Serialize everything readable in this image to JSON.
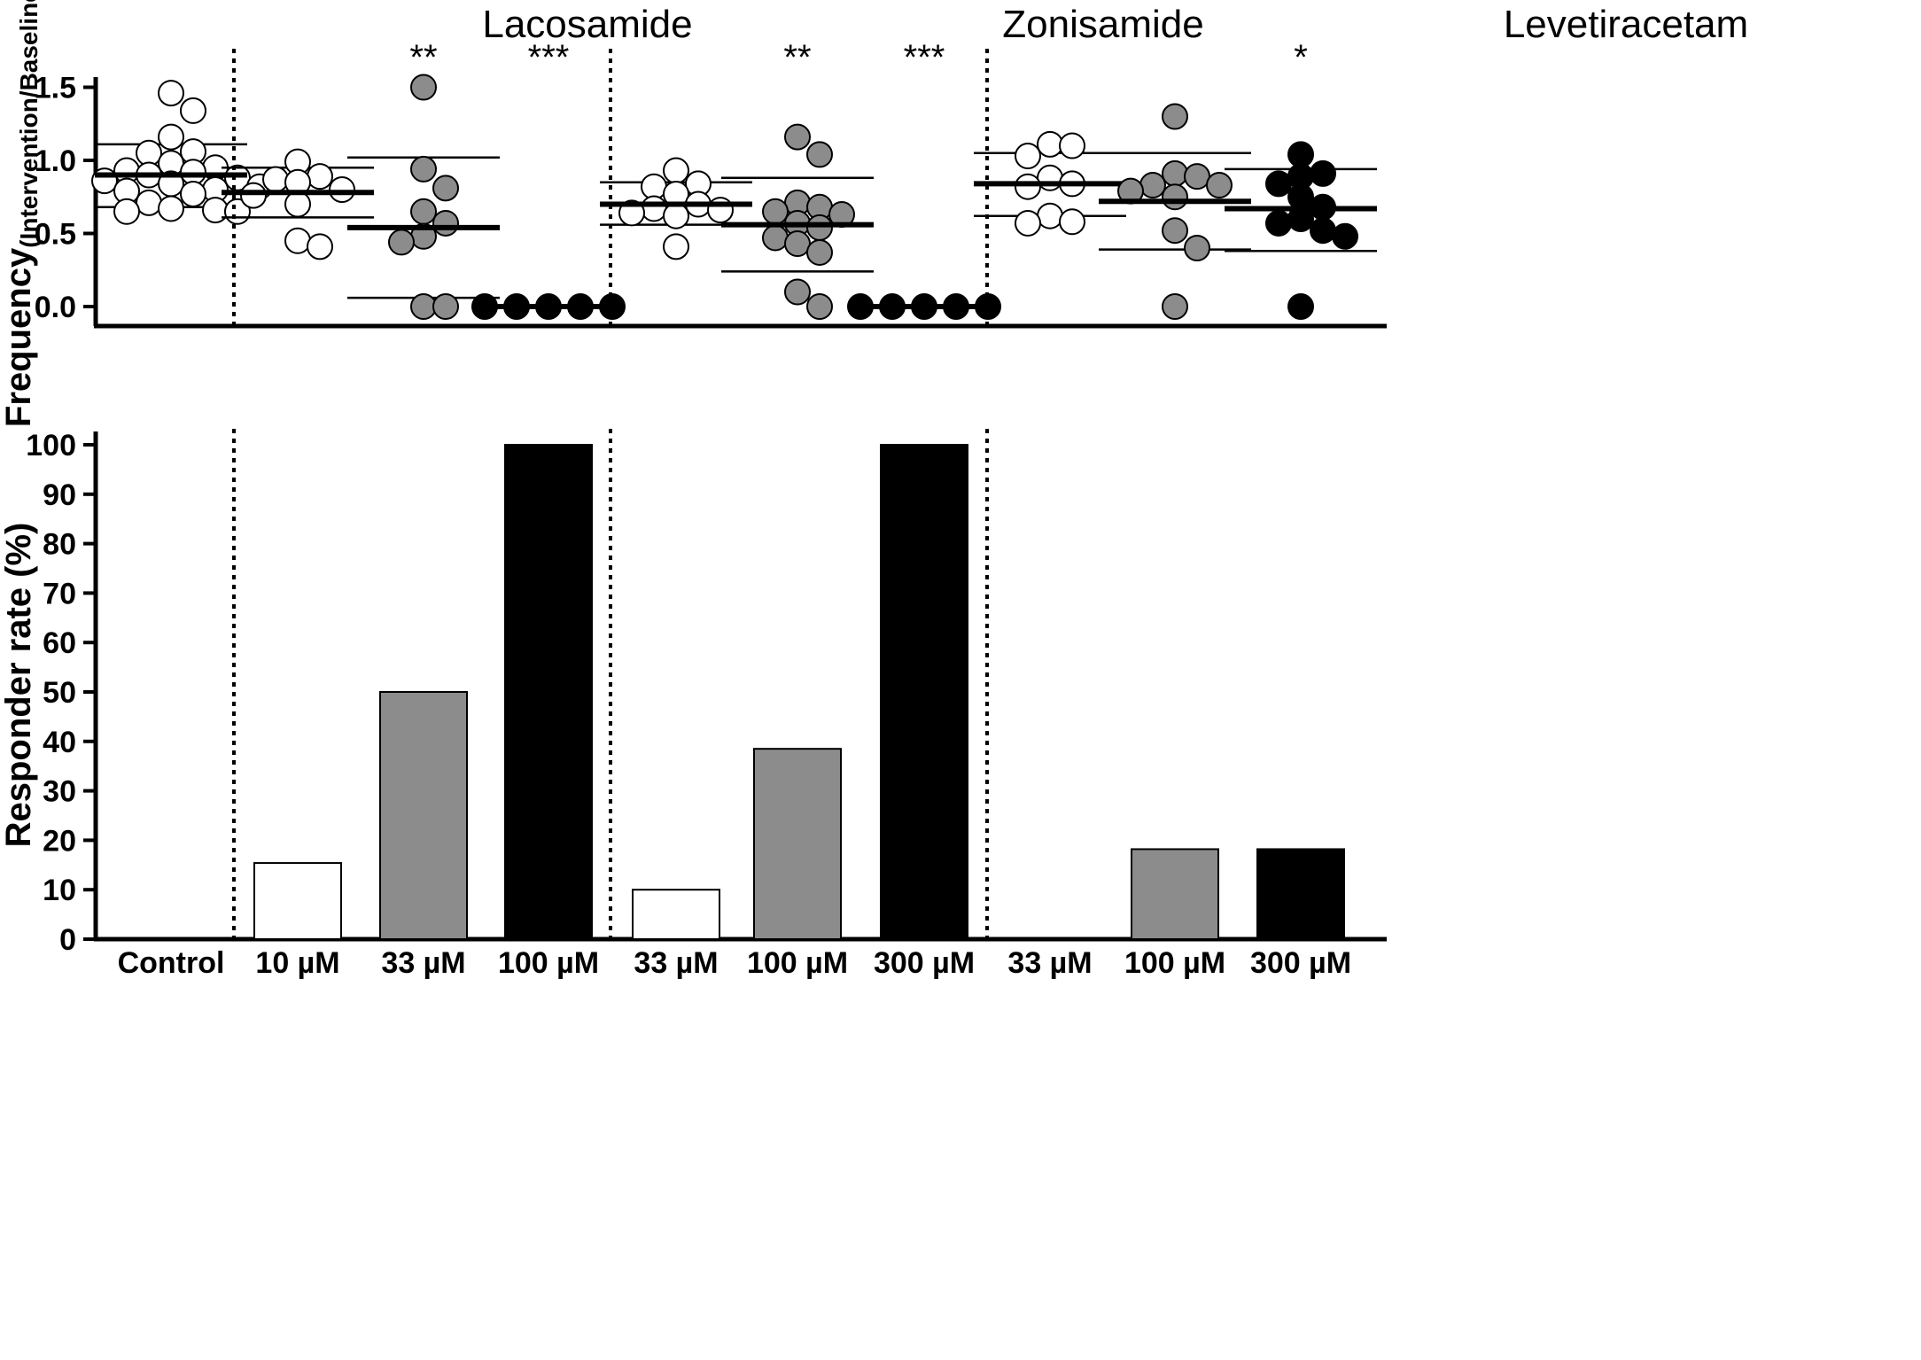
{
  "chart_data": [
    {
      "type": "scatter",
      "ylabel": "Frequency",
      "ylabel_subscript": "(Intervention/Baseline)",
      "ylim": [
        -0.13,
        1.58
      ],
      "yticks": [
        0.0,
        0.5,
        1.0,
        1.5
      ],
      "ytick_labels": [
        "0.0",
        "0.5",
        "1.0",
        "1.5"
      ],
      "groups": [
        {
          "name": "Control",
          "fill": "#ffffff",
          "mean": 0.9,
          "sd_upper": 1.11,
          "sd_lower": 0.68,
          "significance": "",
          "values": [
            1.46,
            1.34,
            1.16,
            1.06,
            1.05,
            0.98,
            0.95,
            0.93,
            0.92,
            0.9,
            0.88,
            0.86,
            0.84,
            0.82,
            0.8,
            0.79,
            0.77,
            0.71,
            0.67,
            0.66,
            0.65,
            0.65
          ]
        },
        {
          "name": "Lacosamide 10 µM",
          "fill": "#ffffff",
          "mean": 0.78,
          "sd_upper": 0.95,
          "sd_lower": 0.61,
          "significance": "",
          "values": [
            0.99,
            0.89,
            0.87,
            0.85,
            0.8,
            0.76,
            0.7,
            0.45,
            0.41
          ]
        },
        {
          "name": "Lacosamide 33 µM",
          "fill": "#8c8c8c",
          "mean": 0.54,
          "sd_upper": 1.02,
          "sd_lower": 0.06,
          "significance": "**",
          "values": [
            1.5,
            0.94,
            0.81,
            0.65,
            0.57,
            0.48,
            0.44,
            0.0,
            0.0
          ]
        },
        {
          "name": "Lacosamide 100 µM",
          "fill": "#000000",
          "mean": 0.0,
          "sd_upper": null,
          "sd_lower": null,
          "significance": "***",
          "values": [
            0.0,
            0.0,
            0.0,
            0.0,
            0.0
          ]
        },
        {
          "name": "Zonisamide 33 µM",
          "fill": "#ffffff",
          "mean": 0.7,
          "sd_upper": 0.85,
          "sd_lower": 0.56,
          "significance": "",
          "values": [
            0.93,
            0.84,
            0.82,
            0.77,
            0.7,
            0.67,
            0.66,
            0.64,
            0.62,
            0.41
          ]
        },
        {
          "name": "Zonisamide 100 µM",
          "fill": "#8c8c8c",
          "mean": 0.56,
          "sd_upper": 0.88,
          "sd_lower": 0.24,
          "significance": "**",
          "values": [
            1.16,
            1.04,
            0.71,
            0.68,
            0.65,
            0.63,
            0.57,
            0.54,
            0.47,
            0.43,
            0.37,
            0.1,
            0.0
          ]
        },
        {
          "name": "Zonisamide 300 µM",
          "fill": "#000000",
          "mean": 0.0,
          "sd_upper": null,
          "sd_lower": null,
          "significance": "***",
          "values": [
            0.0,
            0.0,
            0.0,
            0.0,
            0.0
          ]
        },
        {
          "name": "Levetiracetam 33 µM",
          "fill": "#ffffff",
          "mean": 0.84,
          "sd_upper": 1.05,
          "sd_lower": 0.62,
          "significance": "",
          "values": [
            1.11,
            1.1,
            1.03,
            0.88,
            0.84,
            0.82,
            0.62,
            0.58,
            0.57
          ]
        },
        {
          "name": "Levetiracetam 100 µM",
          "fill": "#8c8c8c",
          "mean": 0.72,
          "sd_upper": 1.05,
          "sd_lower": 0.39,
          "significance": "",
          "values": [
            1.3,
            0.91,
            0.89,
            0.83,
            0.83,
            0.79,
            0.75,
            0.52,
            0.4,
            0.0
          ]
        },
        {
          "name": "Levetiracetam 300 µM",
          "fill": "#000000",
          "mean": 0.67,
          "sd_upper": 0.94,
          "sd_lower": 0.38,
          "significance": "*",
          "values": [
            1.04,
            0.91,
            0.89,
            0.84,
            0.75,
            0.68,
            0.6,
            0.57,
            0.52,
            0.48,
            0.0
          ]
        }
      ]
    },
    {
      "type": "bar",
      "ylabel": "Responder rate (%)",
      "ylim": [
        0,
        100
      ],
      "yticks": [
        0,
        10,
        20,
        30,
        40,
        50,
        60,
        70,
        80,
        90,
        100
      ],
      "categories": [
        "Control",
        "10 µM",
        "33 µM",
        "100 µM",
        "33 µM",
        "100 µM",
        "300 µM",
        "33 µM",
        "100 µM",
        "300 µM"
      ],
      "values": [
        0,
        15.4,
        50,
        100,
        10,
        38.5,
        100,
        0,
        18.2,
        18.2
      ],
      "fills": [
        "#ffffff",
        "#ffffff",
        "#8c8c8c",
        "#000000",
        "#ffffff",
        "#8c8c8c",
        "#000000",
        "#ffffff",
        "#8c8c8c",
        "#000000"
      ]
    }
  ],
  "drug_groups": [
    {
      "label": "Lacosamide",
      "start_index": 1,
      "end_index": 3
    },
    {
      "label": "Zonisamide",
      "start_index": 4,
      "end_index": 6
    },
    {
      "label": "Levetiracetam",
      "start_index": 7,
      "end_index": 9
    }
  ]
}
